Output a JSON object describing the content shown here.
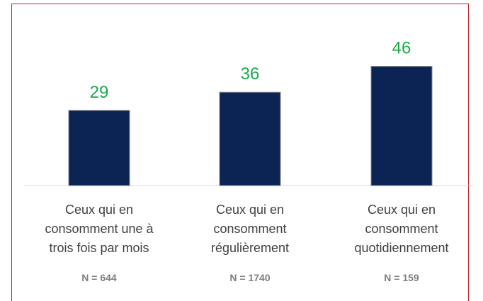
{
  "chart_data": {
    "type": "bar",
    "categories": [
      "Ceux qui en consomment une à trois fois par mois",
      "Ceux qui en consomment régulièrement",
      "Ceux qui en consomment quotidiennement"
    ],
    "values": [
      29,
      36,
      46
    ],
    "n_labels": [
      "N = 644",
      "N = 1740",
      "N = 159"
    ],
    "color": "#0b2453",
    "label_color": "#1ea84f"
  }
}
